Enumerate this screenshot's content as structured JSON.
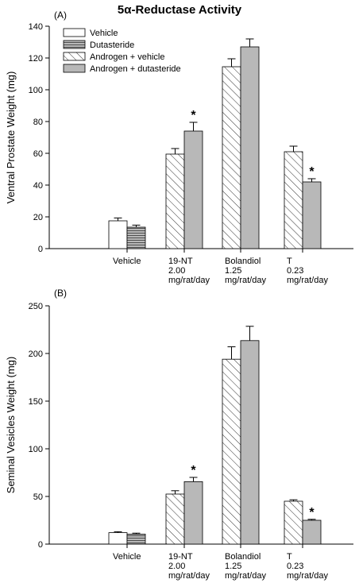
{
  "title": "5α-Reductase Activity",
  "legend": [
    "Vehicle",
    "Dutasteride",
    "Androgen + vehicle",
    "Androgen + dutasteride"
  ],
  "chart_data": [
    {
      "type": "bar",
      "panel_label": "(A)",
      "ylabel": "Ventral Prostate Weight (mg)",
      "xlabel": "",
      "ylim": [
        0,
        140
      ],
      "yticks": [
        0,
        20,
        40,
        60,
        80,
        100,
        120,
        140
      ],
      "categories": [
        [
          "Vehicle"
        ],
        [
          "19-NT",
          "2.00",
          "mg/rat/day"
        ],
        [
          "Bolandiol",
          "1.25",
          "mg/rat/day"
        ],
        [
          "T",
          "0.23",
          "mg/rat/day"
        ]
      ],
      "groups": [
        [
          {
            "style": "white",
            "value": 17.5,
            "err": 1.8
          },
          {
            "style": "hlines",
            "value": 13.5,
            "err": 1.3
          }
        ],
        [
          {
            "style": "hatch",
            "value": 59.5,
            "err": 3.5
          },
          {
            "style": "gray",
            "value": 74,
            "err": 5.5,
            "star": "*"
          }
        ],
        [
          {
            "style": "hatch",
            "value": 114.5,
            "err": 5
          },
          {
            "style": "gray",
            "value": 127,
            "err": 5
          }
        ],
        [
          {
            "style": "hatch",
            "value": 61,
            "err": 3.5
          },
          {
            "style": "gray",
            "value": 42,
            "err": 2,
            "star": "*"
          }
        ]
      ]
    },
    {
      "type": "bar",
      "panel_label": "(B)",
      "ylabel": "Seminal Vesicles Weight (mg)",
      "xlabel": "",
      "ylim": [
        0,
        250
      ],
      "yticks": [
        0,
        50,
        100,
        150,
        200,
        250
      ],
      "categories": [
        [
          "Vehicle"
        ],
        [
          "19-NT",
          "2.00",
          "mg/rat/day"
        ],
        [
          "Bolandiol",
          "1.25",
          "mg/rat/day"
        ],
        [
          "T",
          "0.23",
          "mg/rat/day"
        ]
      ],
      "groups": [
        [
          {
            "style": "white",
            "value": 12,
            "err": 1
          },
          {
            "style": "hlines",
            "value": 10.5,
            "err": 1
          }
        ],
        [
          {
            "style": "hatch",
            "value": 52.5,
            "err": 3.5
          },
          {
            "style": "gray",
            "value": 65.5,
            "err": 4.5,
            "star": "*"
          }
        ],
        [
          {
            "style": "hatch",
            "value": 194,
            "err": 13
          },
          {
            "style": "gray",
            "value": 213.5,
            "err": 15
          }
        ],
        [
          {
            "style": "hatch",
            "value": 45,
            "err": 1.5
          },
          {
            "style": "gray",
            "value": 25,
            "err": 1,
            "star": "*"
          }
        ]
      ]
    }
  ]
}
